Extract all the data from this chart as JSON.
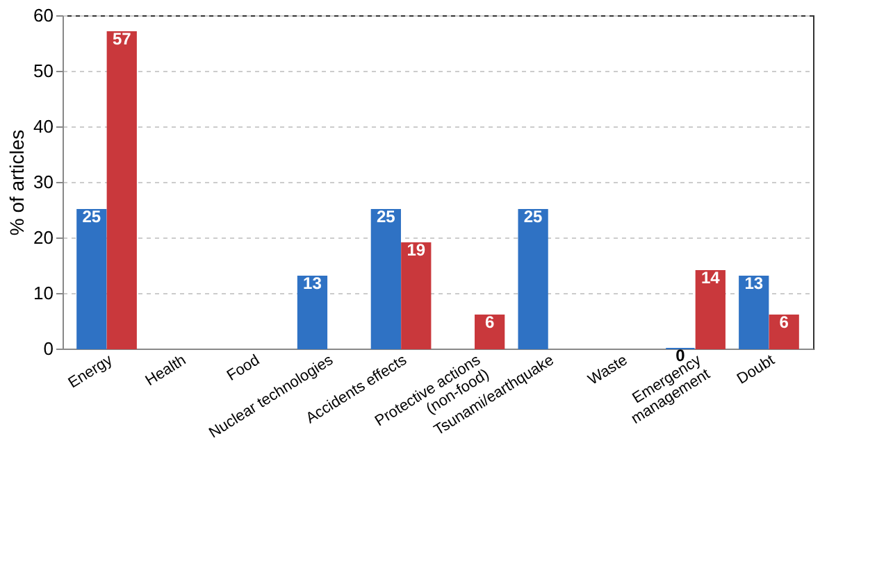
{
  "chart_data": {
    "type": "bar",
    "ylabel": "% of articles",
    "categories": [
      "Energy",
      "Health",
      "Food",
      "Nuclear technologies",
      "Accidents effects",
      "Protective actions\n(non-food)",
      "Tsunami/earthquake",
      "Waste",
      "Emergency\nmanagement",
      "Doubt"
    ],
    "series": [
      {
        "color": "#2f72c4",
        "values": [
          25,
          null,
          null,
          13,
          25,
          null,
          25,
          null,
          0,
          13
        ],
        "value_labels": [
          "25",
          null,
          null,
          "13",
          "25",
          null,
          "25",
          null,
          "0",
          "13"
        ]
      },
      {
        "color": "#c9383c",
        "values": [
          57,
          null,
          null,
          null,
          19,
          6,
          null,
          null,
          14,
          6
        ],
        "value_labels": [
          "57",
          null,
          null,
          null,
          "19",
          "6",
          null,
          null,
          "14",
          "6"
        ]
      }
    ],
    "ylim": [
      0,
      60
    ],
    "yticks": [
      0,
      10,
      20,
      30,
      40,
      50,
      60
    ],
    "grid": "y"
  }
}
